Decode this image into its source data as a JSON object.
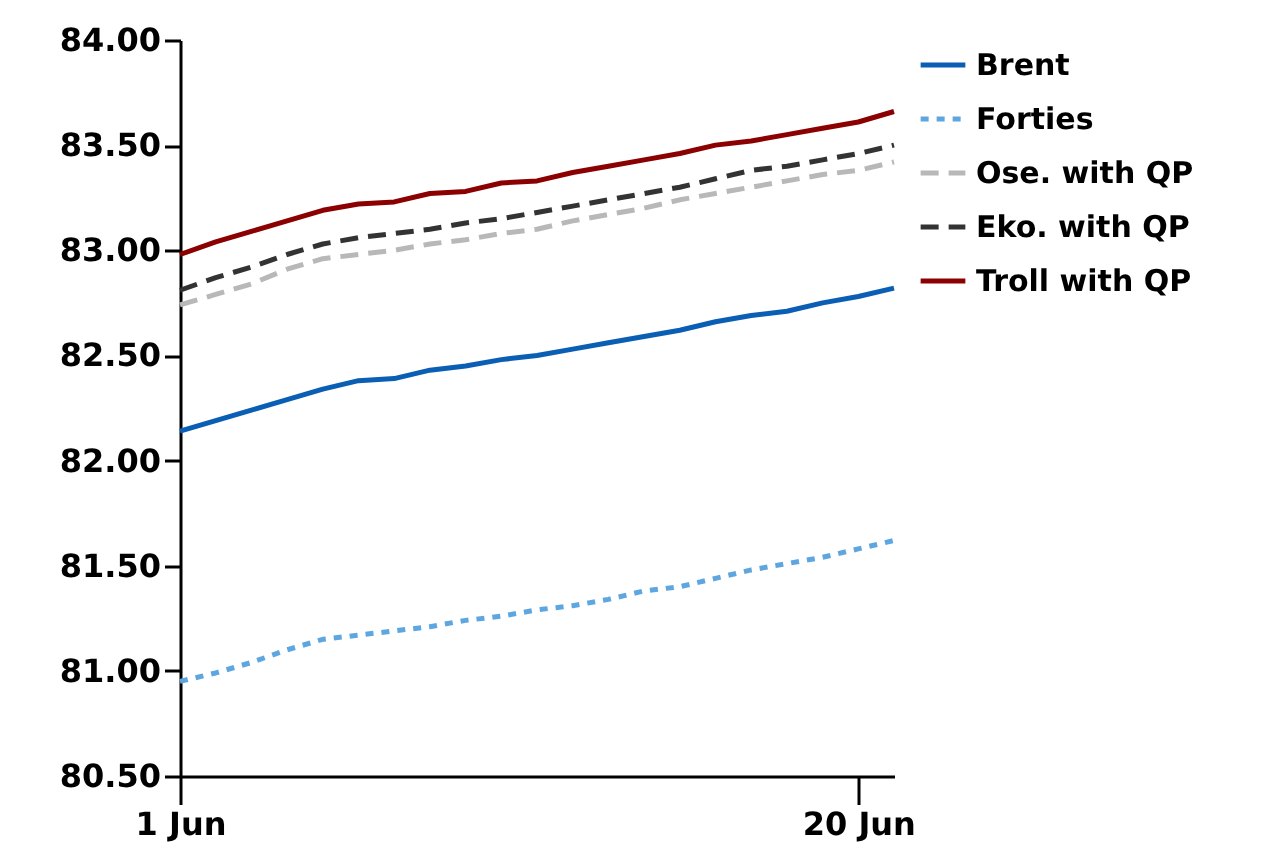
{
  "chart_data": {
    "type": "line",
    "x": [
      "--06-01",
      "--06-02",
      "--06-03",
      "--06-04",
      "--06-05",
      "--06-06",
      "--06-07",
      "--06-08",
      "--06-09",
      "--06-10",
      "--06-11",
      "--06-12",
      "--06-13",
      "--06-14",
      "--06-15",
      "--06-16",
      "--06-17",
      "--06-18",
      "--06-19",
      "--06-20",
      "--06-21"
    ],
    "series": [
      {
        "name": "Brent",
        "color": "#0a5fb4",
        "line_style": "solid",
        "values": [
          82.14,
          82.19,
          82.24,
          82.29,
          82.34,
          82.38,
          82.39,
          82.43,
          82.45,
          82.48,
          82.5,
          82.53,
          82.56,
          82.59,
          82.62,
          82.66,
          82.69,
          82.71,
          82.75,
          82.78,
          82.82
        ]
      },
      {
        "name": "Forties",
        "color": "#5ea6e0",
        "line_style": "dotted",
        "values": [
          80.95,
          80.99,
          81.04,
          81.1,
          81.15,
          81.17,
          81.19,
          81.21,
          81.24,
          81.26,
          81.29,
          81.31,
          81.34,
          81.38,
          81.4,
          81.44,
          81.48,
          81.51,
          81.54,
          81.58,
          81.62
        ]
      },
      {
        "name": "Ose. with QP",
        "color": "#b8b8b8",
        "line_style": "dashed",
        "values": [
          82.74,
          82.79,
          82.84,
          82.91,
          82.96,
          82.98,
          83.0,
          83.03,
          83.05,
          83.08,
          83.1,
          83.14,
          83.17,
          83.2,
          83.24,
          83.27,
          83.3,
          83.33,
          83.36,
          83.38,
          83.42
        ]
      },
      {
        "name": "Eko. with QP",
        "color": "#333333",
        "line_style": "dashed",
        "values": [
          82.81,
          82.87,
          82.92,
          82.98,
          83.03,
          83.06,
          83.08,
          83.1,
          83.13,
          83.15,
          83.18,
          83.21,
          83.24,
          83.27,
          83.3,
          83.34,
          83.38,
          83.4,
          83.43,
          83.46,
          83.5
        ]
      },
      {
        "name": "Troll with QP",
        "color": "#8b0000",
        "line_style": "solid",
        "values": [
          82.98,
          83.04,
          83.09,
          83.14,
          83.19,
          83.22,
          83.23,
          83.27,
          83.28,
          83.32,
          83.33,
          83.37,
          83.4,
          83.43,
          83.46,
          83.5,
          83.52,
          83.55,
          83.58,
          83.61,
          83.66
        ]
      }
    ],
    "xlim": [
      "--06-01",
      "--06-21"
    ],
    "xticks": [
      {
        "value": "--06-01",
        "label": "1 Jun"
      },
      {
        "value": "--06-20",
        "label": "20 Jun"
      }
    ],
    "ylim": [
      80.5,
      84
    ],
    "yticks": [
      {
        "value": 80.5,
        "label": "80.50"
      },
      {
        "value": 81,
        "label": "81.00"
      },
      {
        "value": 81.5,
        "label": "81.50"
      },
      {
        "value": 82,
        "label": "82.00"
      },
      {
        "value": 82.5,
        "label": "82.50"
      },
      {
        "value": 83,
        "label": "83.00"
      },
      {
        "value": 83.5,
        "label": "83.50"
      },
      {
        "value": 84,
        "label": "84.00"
      }
    ],
    "grid": false,
    "legend": "right"
  }
}
